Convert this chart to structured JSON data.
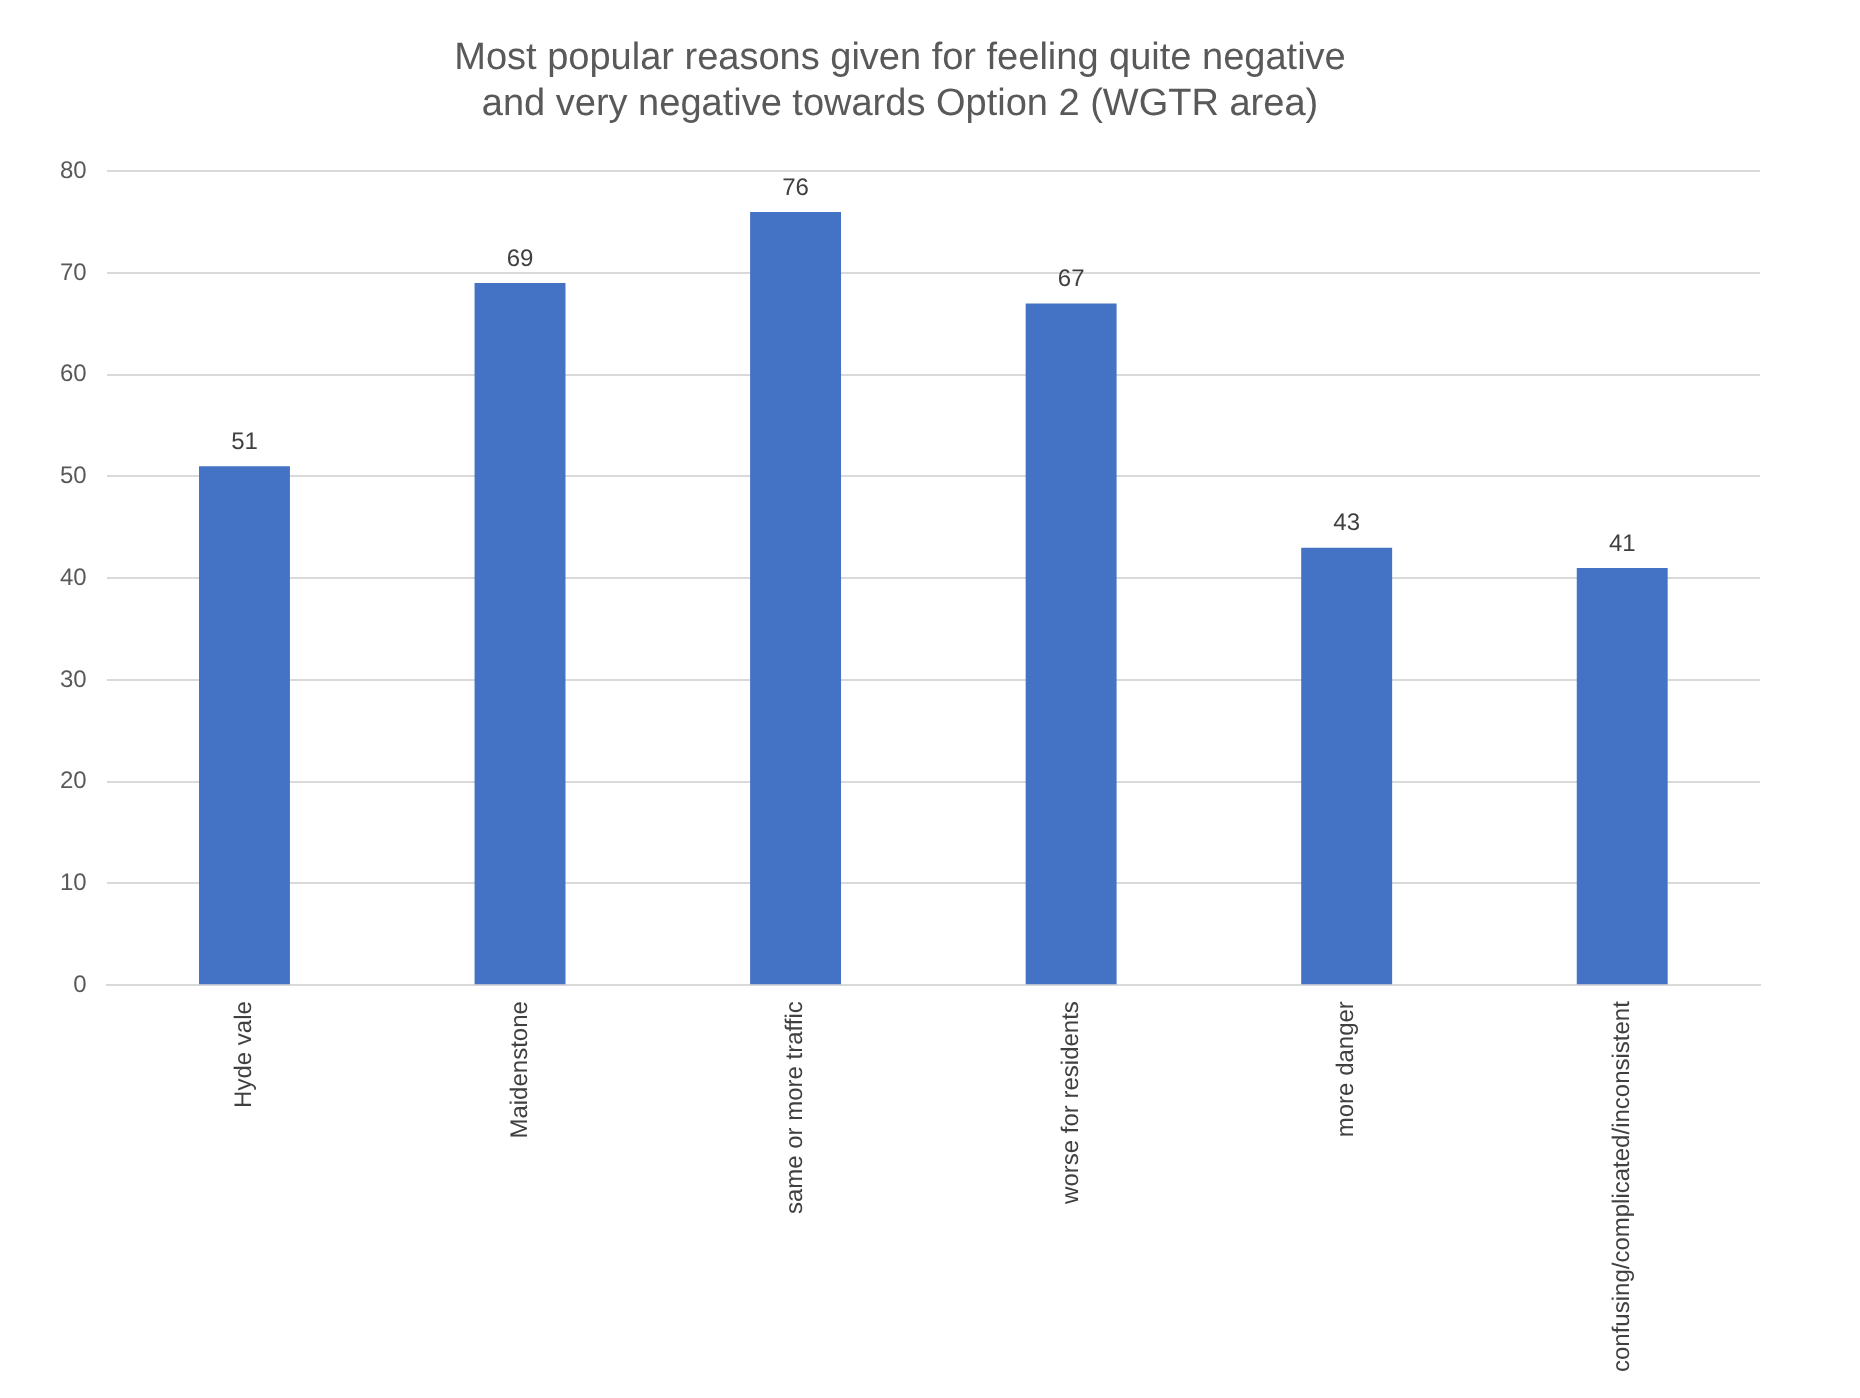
{
  "chart_data": {
    "type": "bar",
    "title": "Most popular reasons given for feeling quite negative and very negative towards Option 2 (WGTR area)",
    "categories": [
      "Hyde vale",
      "Maidenstone",
      "same or more traffic",
      "worse for residents",
      "more danger",
      "confusing/complicated/inconsistent"
    ],
    "values": [
      51,
      69,
      76,
      67,
      43,
      41
    ],
    "color": "#4472c4",
    "ylim": [
      0,
      80
    ],
    "yticks": [
      0,
      10,
      20,
      30,
      40,
      50,
      60,
      70,
      80
    ],
    "grid": "y",
    "data_labels": true,
    "legend": false
  }
}
